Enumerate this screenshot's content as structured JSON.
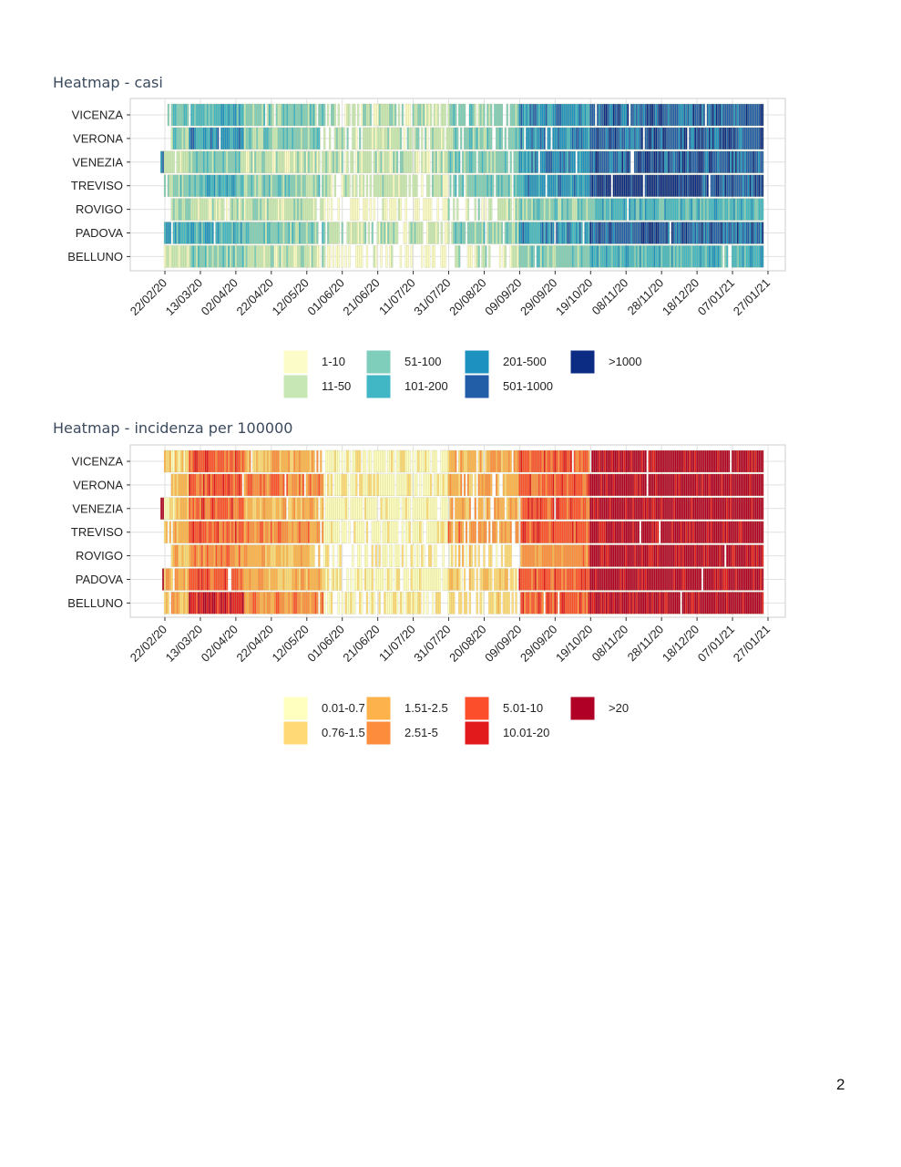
{
  "page_number": "2",
  "chart_data": [
    {
      "type": "heatmap",
      "title": "Heatmap - casi",
      "rows": [
        "VICENZA",
        "VERONA",
        "VENEZIA",
        "TREVISO",
        "ROVIGO",
        "PADOVA",
        "BELLUNO"
      ],
      "x_ticks": [
        "22/02/20",
        "13/03/20",
        "02/04/20",
        "22/04/20",
        "12/05/20",
        "01/06/20",
        "21/06/20",
        "11/07/20",
        "31/07/20",
        "20/08/20",
        "09/09/20",
        "29/09/20",
        "19/10/20",
        "08/11/20",
        "28/11/20",
        "18/12/20",
        "07/01/21",
        "27/01/21"
      ],
      "x_range": [
        "22/02/20",
        "27/01/21"
      ],
      "grid": true,
      "legend_position": "bottom",
      "legend": [
        {
          "label": "1-10",
          "color": "#fcfcc8"
        },
        {
          "label": "11-50",
          "color": "#c7e8b5"
        },
        {
          "label": "51-100",
          "color": "#7fcdbb"
        },
        {
          "label": "101-200",
          "color": "#41b6c4"
        },
        {
          "label": "201-500",
          "color": "#1d91c0"
        },
        {
          "label": "501-1000",
          "color": "#225ea8"
        },
        {
          "label": ">1000",
          "color": "#0c2c84"
        }
      ],
      "row_start_day": {
        "VICENZA": 0,
        "VERONA": 4,
        "VENEZIA": -2,
        "TREVISO": 0,
        "ROVIGO": 4,
        "PADOVA": -1,
        "BELLUNO": 0
      },
      "row_end_day": 337,
      "level_profile": [
        {
          "from_day": 0,
          "to_day": 14,
          "levels": {
            "VICENZA": 2,
            "VERONA": 2,
            "VENEZIA": 1,
            "TREVISO": 2,
            "ROVIGO": 1,
            "PADOVA": 3,
            "BELLUNO": 1
          }
        },
        {
          "from_day": 14,
          "to_day": 45,
          "levels": {
            "VICENZA": 3,
            "VERONA": 4,
            "VENEZIA": 2,
            "TREVISO": 3,
            "ROVIGO": 1,
            "PADOVA": 3,
            "BELLUNO": 2
          }
        },
        {
          "from_day": 45,
          "to_day": 90,
          "levels": {
            "VICENZA": 2,
            "VERONA": 2,
            "VENEZIA": 1,
            "TREVISO": 2,
            "ROVIGO": 1,
            "PADOVA": 2,
            "BELLUNO": 1
          }
        },
        {
          "from_day": 90,
          "to_day": 160,
          "levels": {
            "VICENZA": 1,
            "VERONA": 1,
            "VENEZIA": 1,
            "TREVISO": 1,
            "ROVIGO": 0,
            "PADOVA": 1,
            "BELLUNO": 0
          }
        },
        {
          "from_day": 160,
          "to_day": 200,
          "levels": {
            "VICENZA": 2,
            "VERONA": 2,
            "VENEZIA": 2,
            "TREVISO": 2,
            "ROVIGO": 1,
            "PADOVA": 2,
            "BELLUNO": 1
          }
        },
        {
          "from_day": 200,
          "to_day": 240,
          "levels": {
            "VICENZA": 4,
            "VERONA": 4,
            "VENEZIA": 4,
            "TREVISO": 4,
            "ROVIGO": 2,
            "PADOVA": 4,
            "BELLUNO": 2
          }
        },
        {
          "from_day": 240,
          "to_day": 300,
          "levels": {
            "VICENZA": 5,
            "VERONA": 5,
            "VENEZIA": 5,
            "TREVISO": 6,
            "ROVIGO": 3,
            "PADOVA": 5,
            "BELLUNO": 3
          }
        },
        {
          "from_day": 300,
          "to_day": 338,
          "levels": {
            "VICENZA": 5,
            "VERONA": 5,
            "VENEZIA": 5,
            "TREVISO": 5,
            "ROVIGO": 3,
            "PADOVA": 5,
            "BELLUNO": 3
          }
        }
      ]
    },
    {
      "type": "heatmap",
      "title": "Heatmap - incidenza per 100000",
      "rows": [
        "VICENZA",
        "VERONA",
        "VENEZIA",
        "TREVISO",
        "ROVIGO",
        "PADOVA",
        "BELLUNO"
      ],
      "x_ticks": [
        "22/02/20",
        "13/03/20",
        "02/04/20",
        "22/04/20",
        "12/05/20",
        "01/06/20",
        "21/06/20",
        "11/07/20",
        "31/07/20",
        "20/08/20",
        "09/09/20",
        "29/09/20",
        "19/10/20",
        "08/11/20",
        "28/11/20",
        "18/12/20",
        "07/01/21",
        "27/01/21"
      ],
      "x_range": [
        "22/02/20",
        "27/01/21"
      ],
      "grid": true,
      "legend_position": "bottom",
      "legend": [
        {
          "label": "0.01-0.75",
          "color": "#ffffbf"
        },
        {
          "label": "0.76-1.5",
          "color": "#fed976"
        },
        {
          "label": "1.51-2.5",
          "color": "#feb24c"
        },
        {
          "label": "2.51-5",
          "color": "#fd8d3c"
        },
        {
          "label": "5.01-10",
          "color": "#fc4e2a"
        },
        {
          "label": "10.01-20",
          "color": "#e31a1c"
        },
        {
          "label": ">20",
          "color": "#b10026"
        }
      ],
      "row_start_day": {
        "VICENZA": 0,
        "VERONA": 4,
        "VENEZIA": -2,
        "TREVISO": 0,
        "ROVIGO": 4,
        "PADOVA": -1,
        "BELLUNO": 0
      },
      "row_end_day": 337,
      "level_profile": [
        {
          "from_day": 0,
          "to_day": 14,
          "levels": {
            "VICENZA": 1,
            "VERONA": 2,
            "VENEZIA": 1,
            "TREVISO": 2,
            "ROVIGO": 2,
            "PADOVA": 2,
            "BELLUNO": 2
          }
        },
        {
          "from_day": 14,
          "to_day": 45,
          "levels": {
            "VICENZA": 4,
            "VERONA": 4,
            "VENEZIA": 4,
            "TREVISO": 4,
            "ROVIGO": 3,
            "PADOVA": 4,
            "BELLUNO": 5
          }
        },
        {
          "from_day": 45,
          "to_day": 90,
          "levels": {
            "VICENZA": 2,
            "VERONA": 3,
            "VENEZIA": 2,
            "TREVISO": 3,
            "ROVIGO": 2,
            "PADOVA": 2,
            "BELLUNO": 3
          }
        },
        {
          "from_day": 90,
          "to_day": 160,
          "levels": {
            "VICENZA": 0,
            "VERONA": 0,
            "VENEZIA": 0,
            "TREVISO": 0,
            "ROVIGO": 0,
            "PADOVA": 0,
            "BELLUNO": 0
          }
        },
        {
          "from_day": 160,
          "to_day": 200,
          "levels": {
            "VICENZA": 2,
            "VERONA": 2,
            "VENEZIA": 2,
            "TREVISO": 3,
            "ROVIGO": 1,
            "PADOVA": 1,
            "BELLUNO": 1
          }
        },
        {
          "from_day": 200,
          "to_day": 240,
          "levels": {
            "VICENZA": 4,
            "VERONA": 4,
            "VENEZIA": 4,
            "TREVISO": 4,
            "ROVIGO": 3,
            "PADOVA": 4,
            "BELLUNO": 4
          }
        },
        {
          "from_day": 240,
          "to_day": 338,
          "levels": {
            "VICENZA": 6,
            "VERONA": 6,
            "VENEZIA": 6,
            "TREVISO": 6,
            "ROVIGO": 6,
            "PADOVA": 6,
            "BELLUNO": 6
          }
        }
      ]
    }
  ]
}
